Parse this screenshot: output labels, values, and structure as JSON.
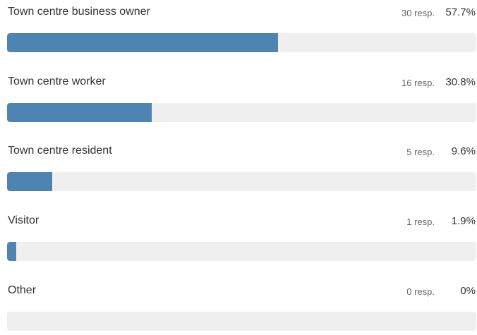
{
  "options": [
    {
      "label": "Town centre business owner",
      "responses": "30 resp.",
      "percent_text": "57.7%",
      "percent": 57.7
    },
    {
      "label": "Town centre worker",
      "responses": "16 resp.",
      "percent_text": "30.8%",
      "percent": 30.8
    },
    {
      "label": "Town centre resident",
      "responses": "5 resp.",
      "percent_text": "9.6%",
      "percent": 9.6
    },
    {
      "label": "Visitor",
      "responses": "1 resp.",
      "percent_text": "1.9%",
      "percent": 1.9
    },
    {
      "label": "Other",
      "responses": "0 resp.",
      "percent_text": "0%",
      "percent": 0
    }
  ],
  "colors": {
    "bar_fill": "#4e84b2",
    "bar_track": "#efefef"
  }
}
